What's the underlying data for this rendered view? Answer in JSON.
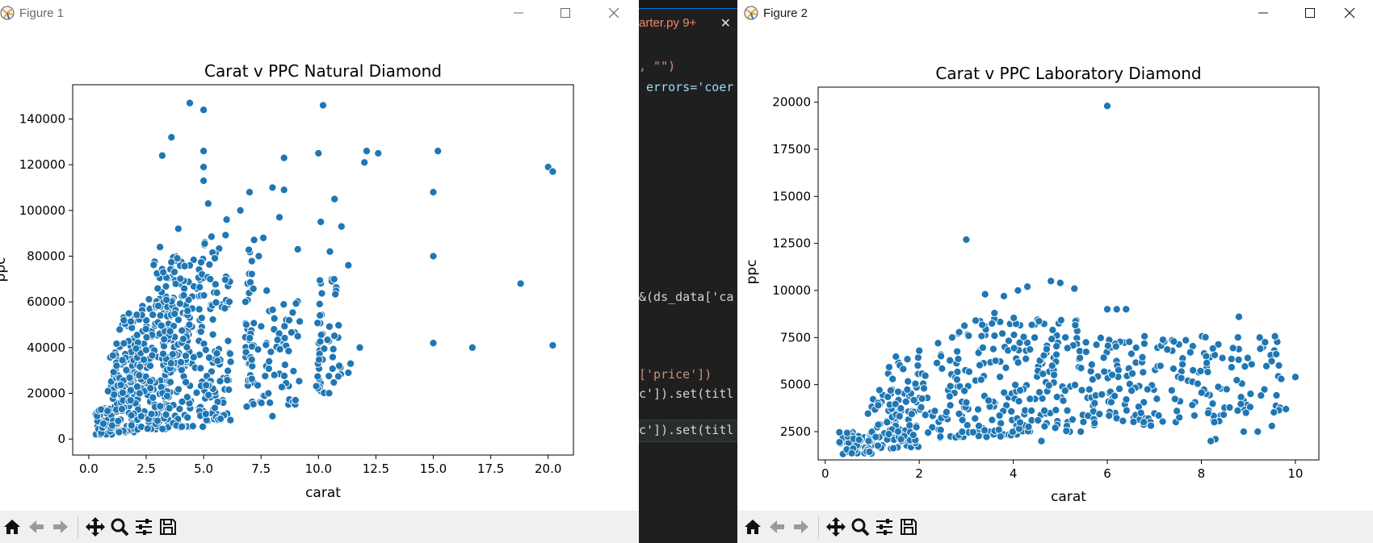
{
  "window1": {
    "title": "Figure 1",
    "chart": {
      "title": "Carat v PPC Natural Diamond",
      "xlabel": "carat",
      "ylabel": "ppc"
    }
  },
  "window2": {
    "title": "Figure 2",
    "chart": {
      "title": "Carat v PPC Laboratory Diamond",
      "xlabel": "carat",
      "ylabel": "ppc"
    }
  },
  "editor": {
    "tab_label": "arter.py 9+",
    "lines": [
      {
        "text": ", \"\")",
        "color": "#ce9178"
      },
      {
        "text": " errors='coer",
        "color": "#9cdcfe"
      },
      {
        "text": "&(ds_data['ca",
        "color": "#d4d4d4"
      },
      {
        "text": "['price'])",
        "color": "#ce9178"
      },
      {
        "text": "c']).set(titl",
        "color": "#d4d4d4"
      },
      {
        "text": "c']).set(titl",
        "color": "#d4d4d4"
      }
    ]
  },
  "toolbar_icons": [
    "home-icon",
    "back-arrow-icon",
    "forward-arrow-icon",
    "pan-icon",
    "zoom-icon",
    "configure-subplots-icon",
    "save-icon"
  ],
  "colors": {
    "marker": "#1f77b4",
    "marker_edge": "#ffffff",
    "toolbar_bg": "#f0f0f0",
    "editor_bg": "#1f1f1f"
  },
  "chart_data": [
    {
      "type": "scatter",
      "title": "Carat v PPC Natural Diamond",
      "xlabel": "carat",
      "ylabel": "ppc",
      "xlim": [
        -0.7,
        21.1
      ],
      "ylim": [
        -7000,
        155000
      ],
      "xticks": [
        0.0,
        2.5,
        5.0,
        7.5,
        10.0,
        12.5,
        15.0,
        17.5,
        20.0
      ],
      "xtick_labels": [
        "0.0",
        "2.5",
        "5.0",
        "7.5",
        "10.0",
        "12.5",
        "15.0",
        "17.5",
        "20.0"
      ],
      "yticks": [
        0,
        20000,
        40000,
        60000,
        80000,
        100000,
        120000,
        140000
      ],
      "ytick_labels": [
        "0",
        "20000",
        "40000",
        "60000",
        "80000",
        "100000",
        "120000",
        "140000"
      ],
      "grid": false,
      "legend": "none",
      "points": [
        [
          4.4,
          147000
        ],
        [
          5.0,
          144000
        ],
        [
          3.6,
          132000
        ],
        [
          3.2,
          124000
        ],
        [
          5.0,
          126000
        ],
        [
          5.0,
          119000
        ],
        [
          5.0,
          113000
        ],
        [
          10.2,
          146000
        ],
        [
          10.0,
          125000
        ],
        [
          12.1,
          126000
        ],
        [
          12.6,
          125000
        ],
        [
          12.0,
          121000
        ],
        [
          8.5,
          123000
        ],
        [
          15.2,
          126000
        ],
        [
          15.0,
          108000
        ],
        [
          20.0,
          119000
        ],
        [
          20.2,
          117000
        ],
        [
          15.0,
          80000
        ],
        [
          18.8,
          68000
        ],
        [
          15.0,
          42000
        ],
        [
          16.7,
          40000
        ],
        [
          20.2,
          41000
        ],
        [
          10.7,
          105000
        ],
        [
          11.0,
          93000
        ],
        [
          11.8,
          40000
        ],
        [
          11.3,
          76000
        ],
        [
          10.5,
          82000
        ],
        [
          8.0,
          110000
        ],
        [
          8.5,
          109000
        ],
        [
          7.0,
          108000
        ],
        [
          5.2,
          103000
        ],
        [
          6.0,
          96000
        ],
        [
          3.9,
          92000
        ],
        [
          3.1,
          84000
        ],
        [
          8.0,
          10000
        ],
        [
          9.0,
          17000
        ],
        [
          11.4,
          33000
        ],
        [
          11.3,
          29000
        ],
        [
          9.1,
          45000
        ],
        [
          7.4,
          80000
        ],
        [
          6.6,
          100000
        ],
        [
          8.3,
          97000
        ],
        [
          7.6,
          88000
        ],
        [
          9.1,
          83000
        ],
        [
          10.1,
          95000
        ]
      ],
      "dense_regions": [
        {
          "x": [
            0.3,
            1.0
          ],
          "y": [
            2000,
            14000
          ],
          "count": 70
        },
        {
          "x": [
            0.8,
            2.2
          ],
          "y": [
            3000,
            42000
          ],
          "count": 110
        },
        {
          "x": [
            1.8,
            3.5
          ],
          "y": [
            4000,
            62000
          ],
          "count": 130
        },
        {
          "x": [
            3.2,
            5.0
          ],
          "y": [
            5000,
            80000
          ],
          "count": 130
        },
        {
          "x": [
            4.8,
            6.2
          ],
          "y": [
            8000,
            90000
          ],
          "count": 110
        },
        {
          "x": [
            6.8,
            7.2
          ],
          "y": [
            14000,
            90000
          ],
          "count": 45
        },
        {
          "x": [
            7.3,
            9.2
          ],
          "y": [
            15000,
            65000
          ],
          "count": 55
        },
        {
          "x": [
            9.9,
            11.0
          ],
          "y": [
            20000,
            70000
          ],
          "count": 50
        },
        {
          "x": [
            1.2,
            2.8
          ],
          "y": [
            20000,
            55000
          ],
          "count": 70
        },
        {
          "x": [
            2.8,
            4.4
          ],
          "y": [
            30000,
            78000
          ],
          "count": 70
        }
      ]
    },
    {
      "type": "scatter",
      "title": "Carat v PPC Laboratory Diamond",
      "xlabel": "carat",
      "ylabel": "ppc",
      "xlim": [
        -0.15,
        10.5
      ],
      "ylim": [
        1000,
        20800
      ],
      "xticks": [
        0,
        2,
        4,
        6,
        8,
        10
      ],
      "xtick_labels": [
        "0",
        "2",
        "4",
        "6",
        "8",
        "10"
      ],
      "yticks": [
        2500,
        5000,
        7500,
        10000,
        12500,
        15000,
        17500,
        20000
      ],
      "ytick_labels": [
        "2500",
        "5000",
        "7500",
        "10000",
        "12500",
        "15000",
        "17500",
        "20000"
      ],
      "grid": false,
      "legend": "none",
      "points": [
        [
          6.0,
          19800
        ],
        [
          3.0,
          12700
        ],
        [
          4.8,
          10500
        ],
        [
          5.0,
          10400
        ],
        [
          5.3,
          10100
        ],
        [
          4.3,
          10200
        ],
        [
          4.1,
          10000
        ],
        [
          3.4,
          9800
        ],
        [
          3.8,
          9700
        ],
        [
          8.8,
          8600
        ],
        [
          6.0,
          9000
        ],
        [
          6.2,
          9000
        ],
        [
          6.4,
          9000
        ],
        [
          10.0,
          5400
        ],
        [
          9.7,
          5300
        ],
        [
          9.8,
          3700
        ],
        [
          8.3,
          2100
        ],
        [
          8.2,
          2000
        ],
        [
          9.2,
          2500
        ],
        [
          8.9,
          2500
        ],
        [
          9.5,
          2800
        ],
        [
          4.6,
          2000
        ],
        [
          2.1,
          4800
        ],
        [
          2.0,
          6800
        ],
        [
          2.4,
          7200
        ],
        [
          2.7,
          7500
        ],
        [
          3.2,
          8400
        ],
        [
          3.6,
          8800
        ]
      ],
      "dense_regions": [
        {
          "x": [
            0.3,
            1.0
          ],
          "y": [
            1300,
            2500
          ],
          "count": 60
        },
        {
          "x": [
            0.9,
            2.0
          ],
          "y": [
            1600,
            4800
          ],
          "count": 60
        },
        {
          "x": [
            1.3,
            3.0
          ],
          "y": [
            2000,
            6800
          ],
          "count": 90
        },
        {
          "x": [
            2.8,
            4.2
          ],
          "y": [
            2200,
            8500
          ],
          "count": 110
        },
        {
          "x": [
            4.0,
            5.5
          ],
          "y": [
            2500,
            8600
          ],
          "count": 110
        },
        {
          "x": [
            5.5,
            7.0
          ],
          "y": [
            2800,
            7700
          ],
          "count": 90
        },
        {
          "x": [
            7.0,
            8.5
          ],
          "y": [
            3000,
            7600
          ],
          "count": 70
        },
        {
          "x": [
            8.5,
            9.7
          ],
          "y": [
            3500,
            7600
          ],
          "count": 45
        }
      ]
    }
  ]
}
